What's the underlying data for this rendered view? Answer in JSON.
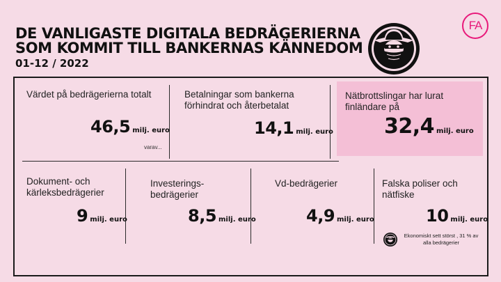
{
  "header": {
    "title_line1": "DE VANLIGASTE DIGITALA BEDRÄGERIERNA",
    "title_line2": "SOM KOMMIT TILL BANKERNAS KÄNNEDOM",
    "date": "01-12 / 2022",
    "logo_text": "FA",
    "icon": "bandit-icon"
  },
  "top_row": [
    {
      "label": "Värdet på bedrägerierna totalt",
      "value": "46,5",
      "unit": "milj. euro",
      "note": "varav..."
    },
    {
      "label": "Betalningar som bankerna förhindrat och återbetalat",
      "value": "14,1",
      "unit": "milj. euro"
    },
    {
      "label": "Nätbrottslingar har lurat finländare på",
      "value": "32,4",
      "unit": "milj. euro"
    }
  ],
  "bottom_row": [
    {
      "label": "Dokument- och kärleksbedrägerier",
      "value": "9",
      "unit": "milj. euro"
    },
    {
      "label": "Investerings-bedrägerier",
      "value": "8,5",
      "unit": "milj. euro"
    },
    {
      "label": "Vd-bedrägerier",
      "value": "4,9",
      "unit": "milj. euro"
    },
    {
      "label": "Falska poliser och nätfiske",
      "value": "10",
      "unit": "milj. euro"
    }
  ],
  "footnote": "Ekonomiskt sett störst , 31 % av alla bedrägerier",
  "colors": {
    "background": "#f6dbe6",
    "highlight": "#f4bfd6",
    "brand": "#e8197a"
  }
}
